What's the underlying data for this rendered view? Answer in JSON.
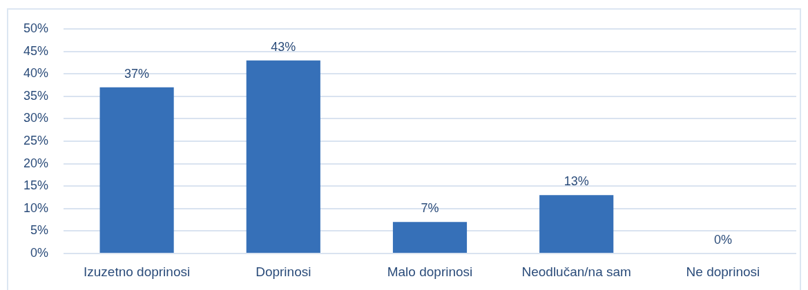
{
  "chart_data": {
    "type": "bar",
    "categories": [
      "Izuzetno doprinosi",
      "Doprinosi",
      "Malo doprinosi",
      "Neodlučan/na sam",
      "Ne doprinosi"
    ],
    "values": [
      37,
      43,
      7,
      13,
      0
    ],
    "value_labels": [
      "37%",
      "43%",
      "7%",
      "13%",
      "0%"
    ],
    "color": "#3670b8",
    "ylim": [
      0,
      50
    ],
    "yticks": [
      {
        "value": 0,
        "label": "0%"
      },
      {
        "value": 5,
        "label": "5%"
      },
      {
        "value": 10,
        "label": "10%"
      },
      {
        "value": 15,
        "label": "15%"
      },
      {
        "value": 20,
        "label": "20%"
      },
      {
        "value": 25,
        "label": "25%"
      },
      {
        "value": 30,
        "label": "30%"
      },
      {
        "value": 35,
        "label": "35%"
      },
      {
        "value": 40,
        "label": "40%"
      },
      {
        "value": 45,
        "label": "45%"
      },
      {
        "value": 50,
        "label": "50%"
      }
    ],
    "grid": "y"
  }
}
